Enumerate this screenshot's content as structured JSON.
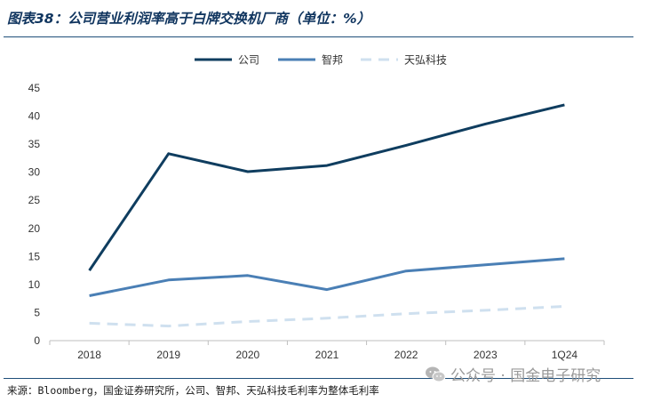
{
  "title": "图表38：公司营业利润率高于白牌交换机厂商（单位：%）",
  "source": "来源：Bloomberg，国金证券研究所，公司、智邦、天弘科技毛利率为整体毛利率",
  "watermark": "公众号 · 国金电子研究",
  "chart_data": {
    "type": "line",
    "categories": [
      "2018",
      "2019",
      "2020",
      "2021",
      "2022",
      "2023",
      "1Q24"
    ],
    "ylim": [
      0,
      45
    ],
    "yticks": [
      0,
      5,
      10,
      15,
      20,
      25,
      30,
      35,
      40,
      45
    ],
    "legend_position": "top-center",
    "grid": false,
    "series": [
      {
        "name": "公司",
        "color": "#0f3d5f",
        "style": "solid",
        "values": [
          12.5,
          33.3,
          30.1,
          31.2,
          34.8,
          38.6,
          42.0
        ]
      },
      {
        "name": "智邦",
        "color": "#4a7fb5",
        "style": "solid",
        "values": [
          8.0,
          10.8,
          11.6,
          9.1,
          12.4,
          13.5,
          14.6
        ]
      },
      {
        "name": "天弘科技",
        "color": "#cfe0ef",
        "style": "dashed",
        "values": [
          3.1,
          2.6,
          3.4,
          4.0,
          4.8,
          5.4,
          6.1
        ]
      }
    ]
  }
}
